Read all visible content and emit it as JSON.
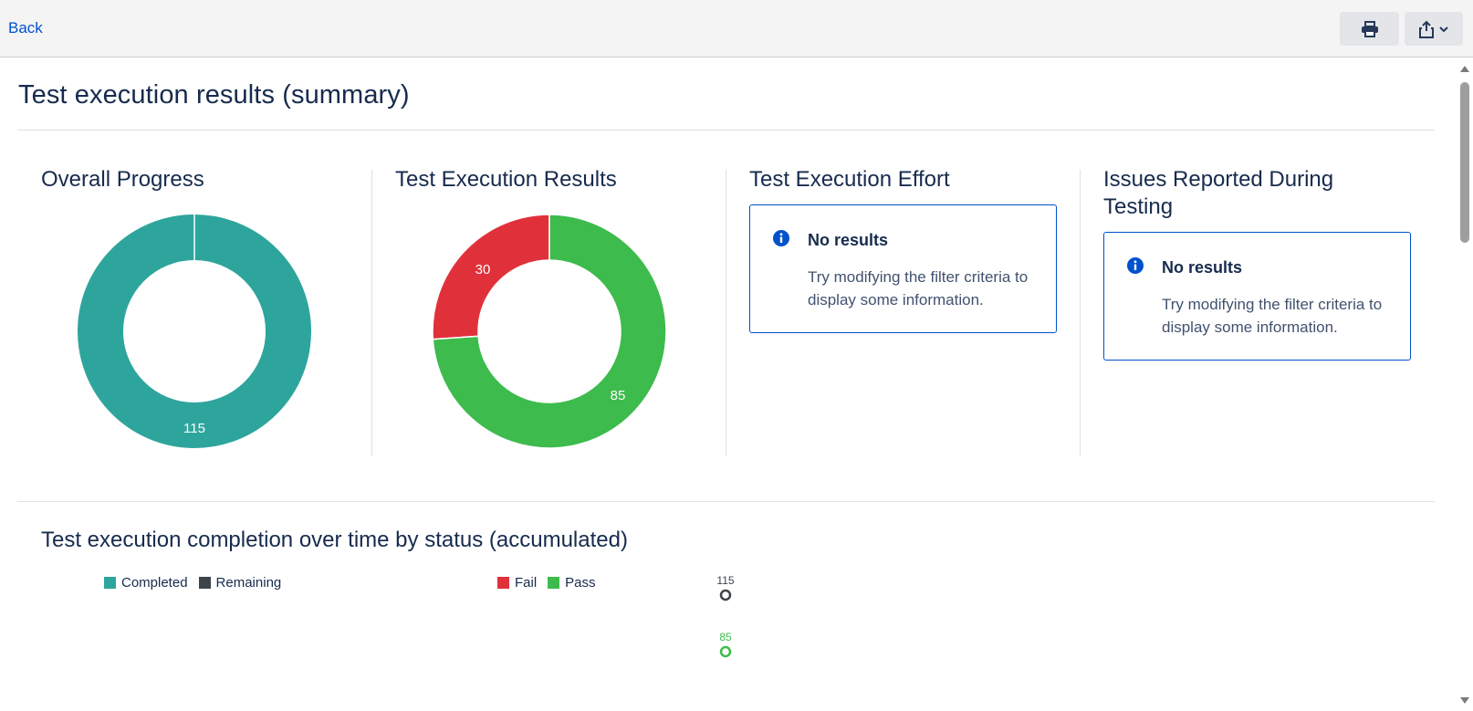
{
  "topbar": {
    "back_label": "Back",
    "icons": [
      "printer-icon",
      "share-icon",
      "chevron-down-icon"
    ]
  },
  "page": {
    "title": "Test execution results (summary)"
  },
  "panels": {
    "overall_progress": {
      "title": "Overall Progress",
      "legend": [
        "Completed",
        "Remaining"
      ],
      "value_label": "115"
    },
    "execution_results": {
      "title": "Test Execution Results",
      "legend": [
        "Fail",
        "Pass"
      ],
      "fail_label": "30",
      "pass_label": "85"
    },
    "execution_effort": {
      "title": "Test Execution Effort",
      "info_title": "No results",
      "info_text": "Try modifying the filter criteria to display some information."
    },
    "issues_reported": {
      "title": "Issues Reported During\nTesting",
      "info_title": "No results",
      "info_text": "Try modifying the filter criteria to display some information."
    }
  },
  "completion": {
    "title": "Test execution completion over time by status (accumulated)",
    "total_label": "115",
    "pass_label": "85"
  },
  "colors": {
    "completed": "#2ea59c",
    "remaining": "#3d4449",
    "fail": "#e0313b",
    "pass": "#3dbb4c",
    "link": "#0052cc"
  },
  "chart_data": [
    {
      "type": "pie",
      "title": "Overall Progress",
      "categories": [
        "Completed",
        "Remaining"
      ],
      "values": [
        115,
        0
      ]
    },
    {
      "type": "pie",
      "title": "Test Execution Results",
      "categories": [
        "Fail",
        "Pass"
      ],
      "values": [
        30,
        85
      ]
    },
    {
      "type": "scatter",
      "title": "Test execution completion over time by status (accumulated)",
      "series": [
        {
          "values": [
            115
          ]
        },
        {
          "values": [
            85
          ]
        }
      ]
    }
  ]
}
